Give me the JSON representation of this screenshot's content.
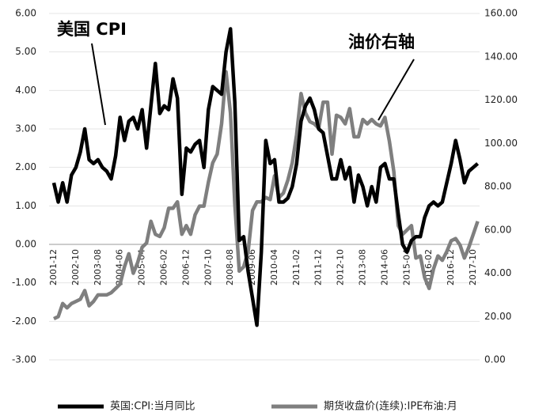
{
  "chart_data": {
    "type": "line",
    "annotations": [
      "美国 CPI",
      "油价右轴"
    ],
    "x": [
      "2001-12",
      null,
      null,
      null,
      null,
      "2002-10",
      null,
      null,
      null,
      null,
      "2003-08",
      null,
      null,
      null,
      null,
      "2004-06",
      null,
      null,
      null,
      null,
      "2005-04",
      null,
      null,
      null,
      null,
      "2006-02",
      null,
      null,
      null,
      null,
      "2006-12",
      null,
      null,
      null,
      null,
      "2007-10",
      null,
      null,
      null,
      null,
      "2008-08",
      null,
      null,
      null,
      null,
      "2009-06",
      null,
      null,
      null,
      null,
      "2010-04",
      null,
      null,
      null,
      null,
      "2011-02",
      null,
      null,
      null,
      null,
      "2011-12",
      null,
      null,
      null,
      null,
      "2012-10",
      null,
      null,
      null,
      null,
      "2013-08",
      null,
      null,
      null,
      null,
      "2014-06",
      null,
      null,
      null,
      null,
      "2015-04",
      null,
      null,
      null,
      null,
      "2016-02",
      null,
      null,
      null,
      null,
      "2016-12",
      null,
      null,
      null,
      null,
      "2017-10",
      null
    ],
    "series": [
      {
        "name": "英国:CPI:当月同比",
        "color": "#000000",
        "axis": "y",
        "values": [
          1.6,
          1.1,
          1.6,
          1.1,
          1.8,
          2.0,
          2.4,
          3.0,
          2.2,
          2.1,
          2.2,
          2.0,
          1.9,
          1.7,
          2.3,
          3.3,
          2.7,
          3.2,
          3.3,
          3.0,
          3.5,
          2.5,
          3.6,
          4.7,
          3.4,
          3.6,
          3.5,
          4.3,
          3.8,
          1.3,
          2.5,
          2.4,
          2.6,
          2.7,
          2.0,
          3.5,
          4.1,
          4.0,
          3.9,
          5.0,
          5.6,
          3.7,
          0.1,
          0.2,
          -0.7,
          -1.4,
          -2.1,
          -0.2,
          2.7,
          2.1,
          2.2,
          1.1,
          1.1,
          1.2,
          1.5,
          2.1,
          3.2,
          3.6,
          3.8,
          3.5,
          3.0,
          2.9,
          2.3,
          1.7,
          1.7,
          2.2,
          1.7,
          2.0,
          1.1,
          1.8,
          1.5,
          1.0,
          1.5,
          1.1,
          2.0,
          2.1,
          1.7,
          1.7,
          0.8,
          0.0,
          -0.2,
          0.1,
          0.2,
          0.2,
          0.7,
          1.0,
          1.1,
          1.0,
          1.1,
          1.6,
          2.1,
          2.7,
          2.2,
          1.6,
          1.9,
          2.0,
          2.1
        ]
      },
      {
        "name": "期货收盘价(连续):IPE布油:月",
        "color": "#7f7f7f",
        "axis": "y2",
        "values": [
          19,
          20,
          26,
          24,
          26,
          27,
          28,
          32,
          25,
          27,
          30,
          30,
          30,
          31,
          33,
          35,
          43,
          49,
          40,
          45,
          52,
          54,
          64,
          58,
          57,
          61,
          70,
          70,
          73,
          58,
          62,
          58,
          67,
          71,
          71,
          82,
          91,
          95,
          109,
          133,
          114,
          72,
          41,
          43,
          50,
          69,
          73,
          73,
          75,
          74,
          85,
          75,
          77,
          83,
          91,
          104,
          123,
          114,
          110,
          109,
          107,
          119,
          119,
          95,
          113,
          112,
          109,
          116,
          103,
          103,
          111,
          109,
          111,
          109,
          108,
          112,
          101,
          87,
          62,
          58,
          60,
          62,
          47,
          48,
          38,
          33,
          42,
          48,
          46,
          50,
          55,
          56,
          53,
          47,
          52,
          58,
          64
        ]
      }
    ],
    "ylim": [
      -3,
      6
    ],
    "yticks": [
      {
        "value": -3,
        "label": "-3.00"
      },
      {
        "value": -2,
        "label": "-2.00"
      },
      {
        "value": -1,
        "label": "-1.00"
      },
      {
        "value": 0,
        "label": "0.00"
      },
      {
        "value": 1,
        "label": "1.00"
      },
      {
        "value": 2,
        "label": "2.00"
      },
      {
        "value": 3,
        "label": "3.00"
      },
      {
        "value": 4,
        "label": "4.00"
      },
      {
        "value": 5,
        "label": "5.00"
      },
      {
        "value": 6,
        "label": "6.00"
      }
    ],
    "y2lim": [
      0,
      160
    ],
    "y2ticks": [
      {
        "value": 0,
        "label": "0.00"
      },
      {
        "value": 20,
        "label": "20.00"
      },
      {
        "value": 40,
        "label": "40.00"
      },
      {
        "value": 60,
        "label": "60.00"
      },
      {
        "value": 80,
        "label": "80.00"
      },
      {
        "value": 100,
        "label": "100.00"
      },
      {
        "value": 120,
        "label": "120.00"
      },
      {
        "value": 140,
        "label": "140.00"
      },
      {
        "value": 160,
        "label": "160.00"
      }
    ],
    "grid": true,
    "legend": "bottom"
  }
}
